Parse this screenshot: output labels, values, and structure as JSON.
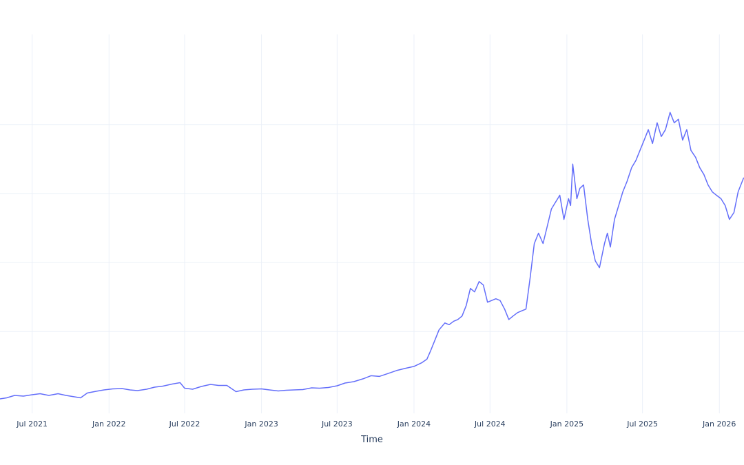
{
  "chart_data": {
    "type": "line",
    "title": "",
    "xlabel": "Time",
    "ylabel": "",
    "grid": true,
    "legend": "none",
    "line_color": "#636efa",
    "xlim": [
      "2021-04-15",
      "2026-03-01"
    ],
    "ylim": [
      0,
      100
    ],
    "y_gridlines": [
      19.5,
      39.5,
      59.5,
      79.5
    ],
    "x_ticks": [
      {
        "date": "2021-07-01",
        "label": "Jul 2021"
      },
      {
        "date": "2022-01-01",
        "label": "Jan 2022"
      },
      {
        "date": "2022-07-01",
        "label": "Jul 2022"
      },
      {
        "date": "2023-01-01",
        "label": "Jan 2023"
      },
      {
        "date": "2023-07-01",
        "label": "Jul 2023"
      },
      {
        "date": "2024-01-01",
        "label": "Jan 2024"
      },
      {
        "date": "2024-07-01",
        "label": "Jul 2024"
      },
      {
        "date": "2025-01-01",
        "label": "Jan 2025"
      },
      {
        "date": "2025-07-01",
        "label": "Jul 2025"
      },
      {
        "date": "2026-01-01",
        "label": "Jan 2026"
      }
    ],
    "series": [
      {
        "x": [
          "2021-04-15",
          "2021-05-01",
          "2021-05-20",
          "2021-06-10",
          "2021-07-01",
          "2021-07-20",
          "2021-08-10",
          "2021-09-01",
          "2021-09-20",
          "2021-10-10",
          "2021-10-25",
          "2021-11-10",
          "2021-12-01",
          "2021-12-20",
          "2022-01-10",
          "2022-02-01",
          "2022-02-20",
          "2022-03-10",
          "2022-04-01",
          "2022-04-20",
          "2022-05-10",
          "2022-06-01",
          "2022-06-20",
          "2022-07-01",
          "2022-07-20",
          "2022-08-10",
          "2022-09-01",
          "2022-09-20",
          "2022-10-10",
          "2022-11-01",
          "2022-11-20",
          "2022-12-10",
          "2023-01-01",
          "2023-01-20",
          "2023-02-10",
          "2023-03-01",
          "2023-03-20",
          "2023-04-10",
          "2023-05-01",
          "2023-05-20",
          "2023-06-10",
          "2023-07-01",
          "2023-07-20",
          "2023-08-10",
          "2023-09-01",
          "2023-09-20",
          "2023-10-10",
          "2023-11-01",
          "2023-11-20",
          "2023-12-10",
          "2024-01-01",
          "2024-01-20",
          "2024-02-01",
          "2024-02-10",
          "2024-02-20",
          "2024-03-01",
          "2024-03-15",
          "2024-03-25",
          "2024-04-05",
          "2024-04-15",
          "2024-04-25",
          "2024-05-05",
          "2024-05-15",
          "2024-05-25",
          "2024-06-05",
          "2024-06-15",
          "2024-06-25",
          "2024-07-05",
          "2024-07-15",
          "2024-07-25",
          "2024-08-05",
          "2024-08-15",
          "2024-08-25",
          "2024-09-05",
          "2024-09-15",
          "2024-09-25",
          "2024-10-05",
          "2024-10-15",
          "2024-10-25",
          "2024-11-05",
          "2024-11-15",
          "2024-11-25",
          "2024-12-05",
          "2024-12-15",
          "2024-12-25",
          "2025-01-05",
          "2025-01-10",
          "2025-01-15",
          "2025-01-25",
          "2025-02-01",
          "2025-02-10",
          "2025-02-20",
          "2025-03-01",
          "2025-03-10",
          "2025-03-20",
          "2025-04-01",
          "2025-04-08",
          "2025-04-15",
          "2025-04-25",
          "2025-05-05",
          "2025-05-15",
          "2025-05-25",
          "2025-06-05",
          "2025-06-15",
          "2025-06-25",
          "2025-07-05",
          "2025-07-15",
          "2025-07-25",
          "2025-08-05",
          "2025-08-15",
          "2025-08-25",
          "2025-09-05",
          "2025-09-15",
          "2025-09-25",
          "2025-10-05",
          "2025-10-15",
          "2025-10-25",
          "2025-11-05",
          "2025-11-15",
          "2025-11-25",
          "2025-12-05",
          "2025-12-15",
          "2025-12-25",
          "2026-01-05",
          "2026-01-15",
          "2026-01-25",
          "2026-02-05",
          "2026-02-15",
          "2026-02-28"
        ],
        "y": [
          0.0,
          0.3,
          1.0,
          0.8,
          1.2,
          1.5,
          1.0,
          1.5,
          1.0,
          0.6,
          0.3,
          1.7,
          2.2,
          2.6,
          2.9,
          3.0,
          2.6,
          2.4,
          2.8,
          3.4,
          3.7,
          4.3,
          4.7,
          3.1,
          2.8,
          3.6,
          4.2,
          3.9,
          3.9,
          2.1,
          2.6,
          2.8,
          2.9,
          2.6,
          2.3,
          2.5,
          2.6,
          2.7,
          3.2,
          3.1,
          3.3,
          3.8,
          4.6,
          5.0,
          5.8,
          6.7,
          6.5,
          7.4,
          8.2,
          8.8,
          9.4,
          10.5,
          11.5,
          14.0,
          17.0,
          20.0,
          22.0,
          21.5,
          22.5,
          23.0,
          24.0,
          27.0,
          32.0,
          31.0,
          34.0,
          33.0,
          28.0,
          28.5,
          29.0,
          28.5,
          26.0,
          23.0,
          24.0,
          25.0,
          25.5,
          26.0,
          35.0,
          45.0,
          48.0,
          45.0,
          50.0,
          55.0,
          57.0,
          59.0,
          52.0,
          58.0,
          56.0,
          68.0,
          58.0,
          61.0,
          62.0,
          52.0,
          45.0,
          40.0,
          38.0,
          45.0,
          48.0,
          44.0,
          52.0,
          56.0,
          60.0,
          63.0,
          67.0,
          69.0,
          72.0,
          75.0,
          78.0,
          74.0,
          80.0,
          76.0,
          78.0,
          83.0,
          80.0,
          81.0,
          75.0,
          78.0,
          72.0,
          70.0,
          67.0,
          65.0,
          62.0,
          60.0,
          59.0,
          58.0,
          56.0,
          52.0,
          54.0,
          60.0,
          64.0
        ]
      }
    ]
  }
}
